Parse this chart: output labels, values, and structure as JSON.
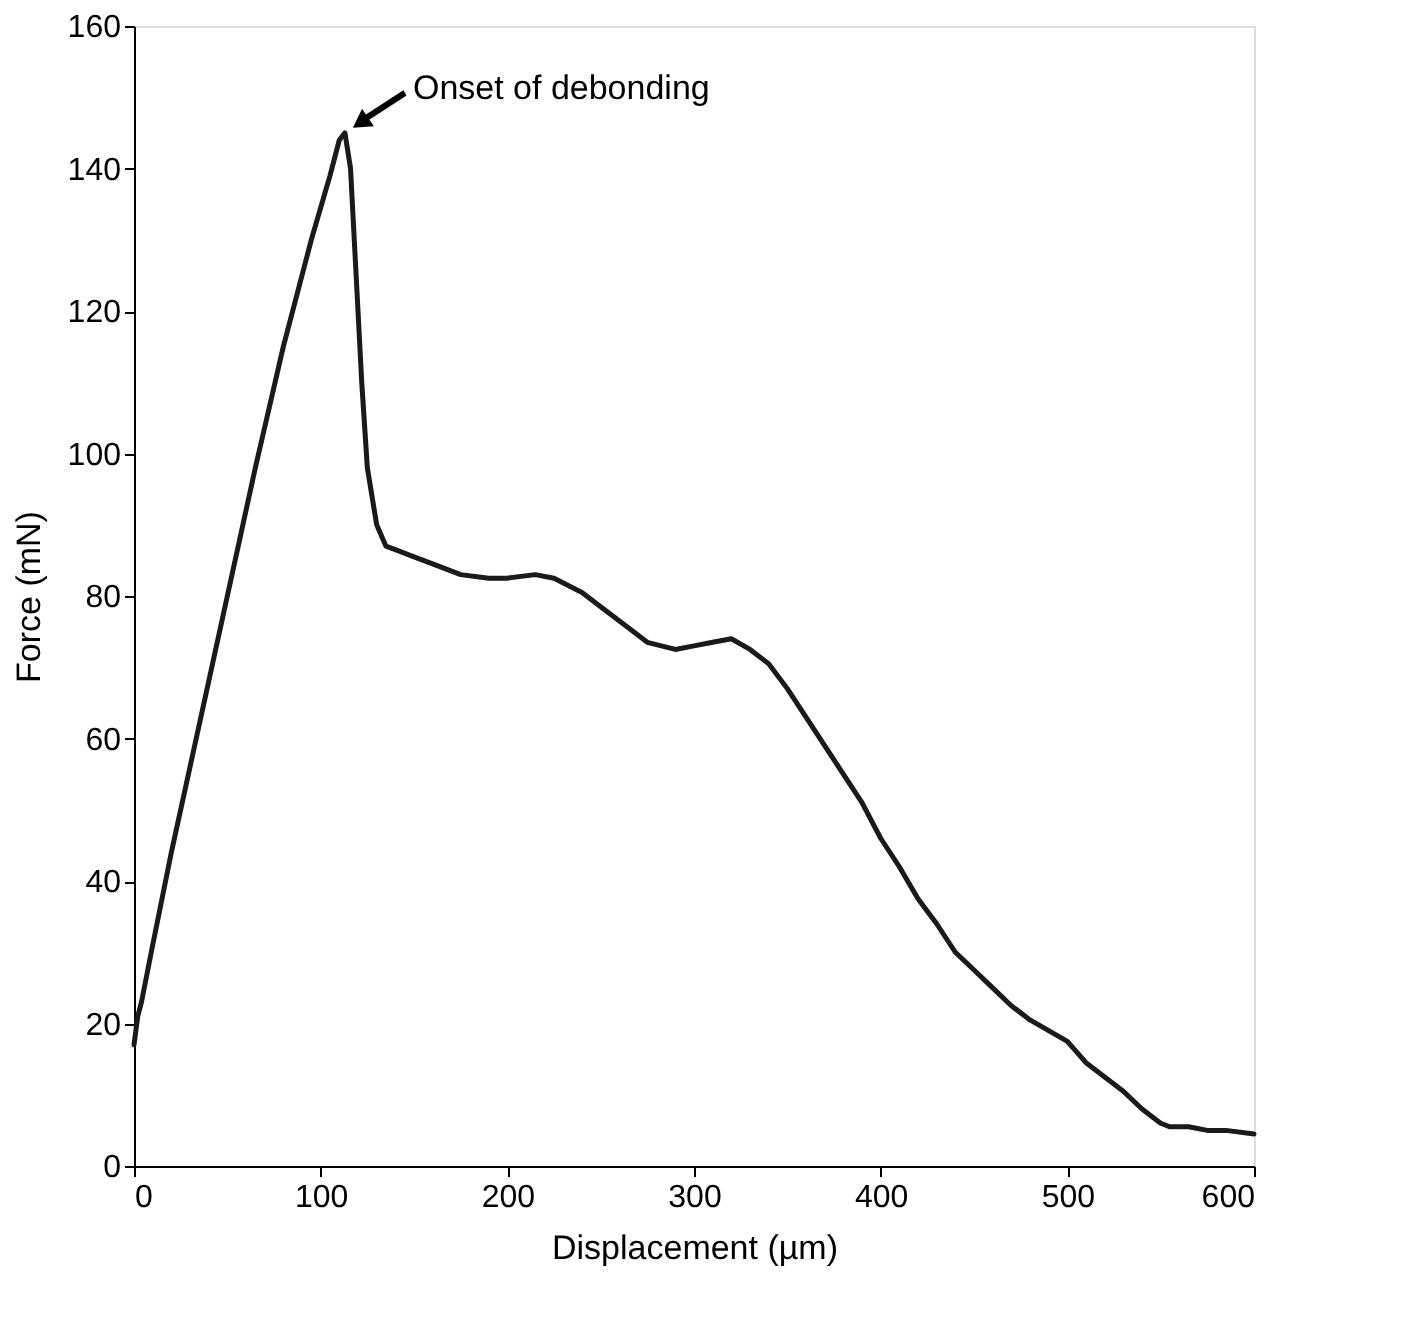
{
  "chart_data": {
    "type": "line",
    "xlabel": "Displacement (µm)",
    "ylabel": "Force (mN)",
    "xlim": [
      0,
      600
    ],
    "xticks": [
      0,
      100,
      200,
      300,
      400,
      500,
      600
    ],
    "ylim": [
      0,
      160
    ],
    "yticks": [
      0,
      20,
      40,
      60,
      80,
      100,
      120,
      140,
      160
    ],
    "grid": false,
    "legend": false,
    "marker": "none",
    "line_style": "solid",
    "series": [
      {
        "color": "#1a1a1a",
        "x": [
          0,
          2,
          4,
          10,
          20,
          35,
          50,
          65,
          80,
          95,
          105,
          110,
          113,
          116,
          119,
          122,
          125,
          130,
          135,
          140,
          150,
          160,
          175,
          190,
          200,
          215,
          225,
          240,
          250,
          265,
          275,
          290,
          300,
          310,
          320,
          330,
          340,
          350,
          360,
          370,
          380,
          390,
          400,
          410,
          420,
          430,
          440,
          450,
          460,
          470,
          480,
          490,
          500,
          510,
          520,
          530,
          540,
          550,
          555,
          565,
          575,
          585,
          600
        ],
        "values": [
          17,
          21,
          23,
          31,
          44,
          62,
          80,
          98,
          115,
          130,
          139,
          144,
          145,
          140,
          125,
          110,
          98,
          90,
          87,
          86.5,
          85.5,
          84.5,
          83,
          82.5,
          82.5,
          83,
          82.5,
          80.5,
          78.5,
          75.5,
          73.5,
          72.5,
          73,
          73.5,
          74,
          72.5,
          70.5,
          67,
          63,
          59,
          55,
          51,
          46,
          42,
          37.5,
          34,
          30,
          27.5,
          25,
          22.5,
          20.5,
          19,
          17.5,
          14.5,
          12.5,
          10.5,
          8,
          6,
          5.5,
          5.5,
          5,
          5,
          4.5
        ]
      }
    ],
    "annotations": [
      {
        "text": "Onset of debonding",
        "x": 113,
        "y": 145
      }
    ]
  }
}
